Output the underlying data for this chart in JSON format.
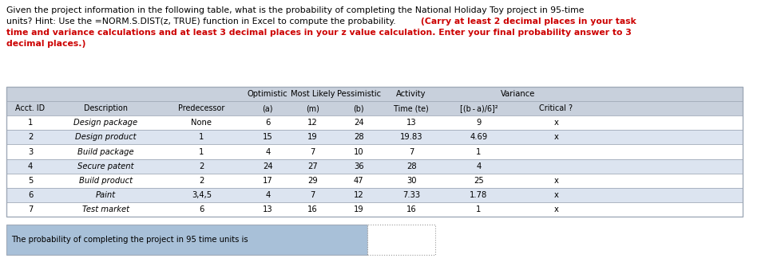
{
  "title_line1_normal": "Given the project information in the following table, what is the probability of completing the National Holiday Toy project in 95-time",
  "title_line2_normal": "units? Hint: Use the =NORM.S.DIST(z, TRUE) function in Excel to compute the probability. ",
  "title_line2_bold": "(Carry at least 2 decimal places in your task",
  "title_line3_bold": "time and variance calculations and at least 3 decimal places in your z value calculation. Enter your final probability answer to 3",
  "title_line4_bold": "decimal places.)",
  "header_row1_labels": [
    "Optimistic",
    "Most Likely",
    "Pessimistic",
    "Activity",
    "Variance"
  ],
  "header_row1_cols": [
    3,
    4,
    5,
    6,
    7
  ],
  "header_row2": [
    "Acct. ID",
    "Description",
    "Predecessor",
    "(a)",
    "(m)",
    "(b)",
    "Time (te)",
    "[(b - a)/6]²",
    "Critical ?"
  ],
  "rows": [
    [
      "1",
      "Design package",
      "None",
      "6",
      "12",
      "24",
      "13",
      "9",
      "x"
    ],
    [
      "2",
      "Design product",
      "1",
      "15",
      "19",
      "28",
      "19.83",
      "4.69",
      "x"
    ],
    [
      "3",
      "Build package",
      "1",
      "4",
      "7",
      "10",
      "7",
      "1",
      ""
    ],
    [
      "4",
      "Secure patent",
      "2",
      "24",
      "27",
      "36",
      "28",
      "4",
      ""
    ],
    [
      "5",
      "Build product",
      "2",
      "17",
      "29",
      "47",
      "30",
      "25",
      "x"
    ],
    [
      "6",
      "Paint",
      "3,4,5",
      "4",
      "7",
      "12",
      "7.33",
      "1.78",
      "x"
    ],
    [
      "7",
      "Test market",
      "6",
      "13",
      "16",
      "19",
      "16",
      "1",
      "x"
    ]
  ],
  "bottom_label": "The probability of completing the project in 95 time units is",
  "table_header_bg": "#c8d0dc",
  "table_alt_row_bg": "#dce4f0",
  "table_border_color": "#a0aab8",
  "bottom_box_bg": "#a8c0d8",
  "title_bold_color": "#cc0000",
  "bg_color": "#ffffff",
  "font_size_title": 7.8,
  "font_size_table": 7.2
}
